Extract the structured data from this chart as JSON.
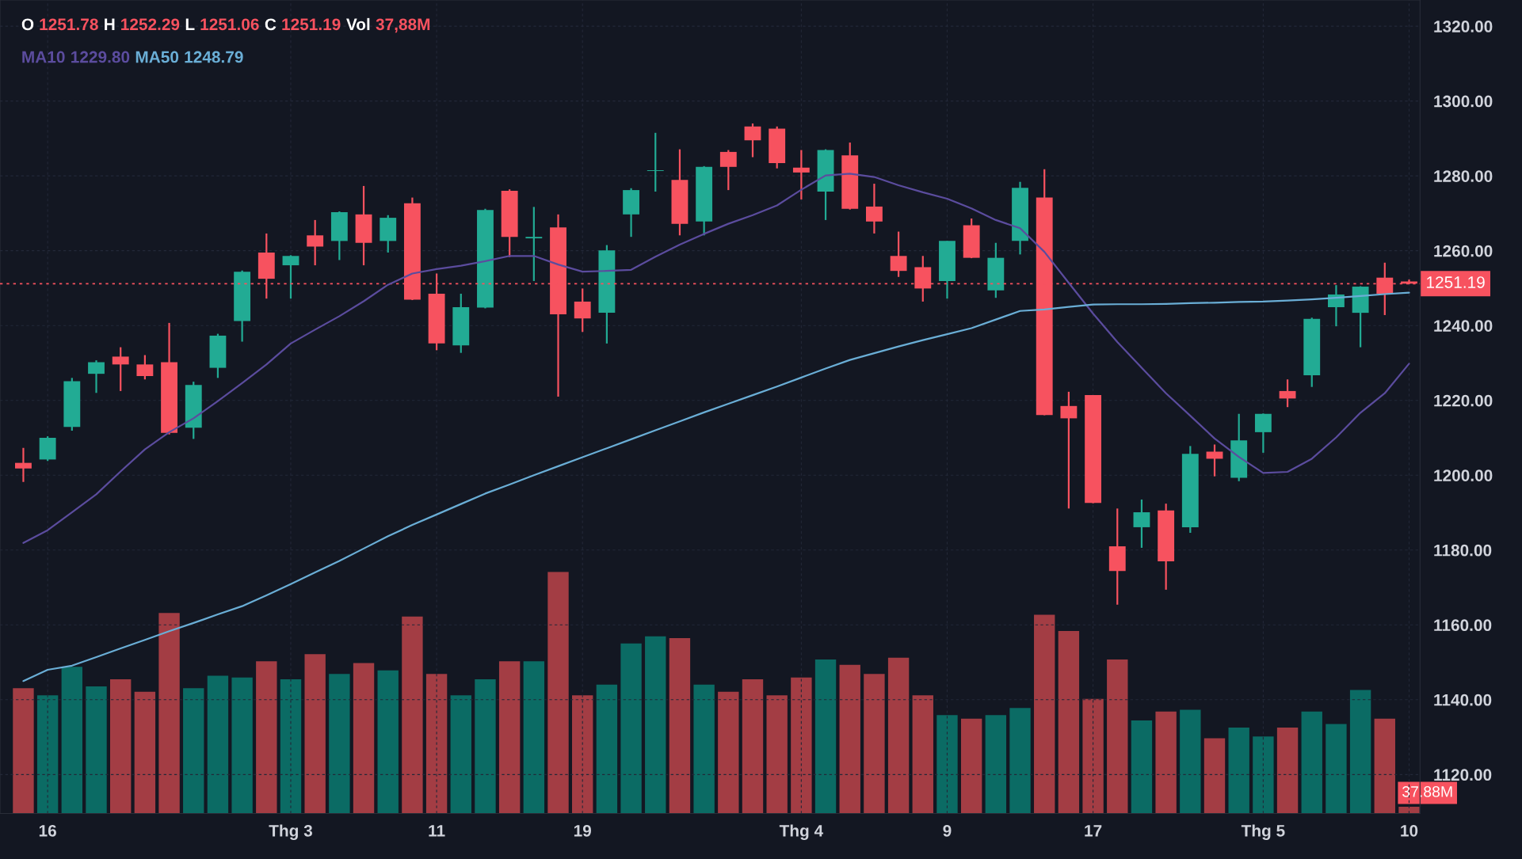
{
  "chart_data": [
    {
      "type": "candlestick",
      "categories": [
        null,
        "16",
        null,
        null,
        null,
        null,
        null,
        null,
        null,
        null,
        null,
        "Thg 3",
        null,
        null,
        null,
        null,
        null,
        "11",
        null,
        null,
        null,
        null,
        null,
        "19",
        null,
        null,
        null,
        null,
        null,
        null,
        null,
        null,
        "Thg 4",
        null,
        null,
        null,
        null,
        null,
        "9",
        null,
        null,
        null,
        null,
        null,
        "17",
        null,
        null,
        null,
        null,
        null,
        null,
        "Thg 5",
        null,
        null,
        null,
        null,
        null,
        "10"
      ],
      "ohlc": [
        [
          1203.3,
          1207.3,
          1198.2,
          1201.8
        ],
        [
          1204.2,
          1210.4,
          1203.8,
          1210.0
        ],
        [
          1212.9,
          1226.0,
          1211.9,
          1225.1
        ],
        [
          1227.1,
          1230.7,
          1222.0,
          1230.2
        ],
        [
          1231.7,
          1234.2,
          1222.5,
          1229.6
        ],
        [
          1229.6,
          1232.1,
          1225.6,
          1226.5
        ],
        [
          1230.2,
          1240.7,
          1210.9,
          1211.3
        ],
        [
          1212.7,
          1225.0,
          1209.7,
          1224.1
        ],
        [
          1228.7,
          1237.8,
          1226.0,
          1237.3
        ],
        [
          1241.2,
          1254.7,
          1235.7,
          1254.4
        ],
        [
          1259.5,
          1264.6,
          1247.2,
          1252.5
        ],
        [
          1256.1,
          1258.8,
          1247.2,
          1258.6
        ],
        [
          1264.1,
          1268.2,
          1256.1,
          1261.1
        ],
        [
          1262.6,
          1270.5,
          1257.5,
          1270.3
        ],
        [
          1269.7,
          1277.3,
          1256.1,
          1262.1
        ],
        [
          1262.6,
          1269.5,
          1259.5,
          1268.8
        ],
        [
          1272.7,
          1274.2,
          1246.8,
          1246.9
        ],
        [
          1248.5,
          1253.9,
          1233.4,
          1235.2
        ],
        [
          1234.7,
          1248.5,
          1232.7,
          1244.9
        ],
        [
          1244.8,
          1271.2,
          1244.6,
          1270.9
        ],
        [
          1276.0,
          1276.4,
          1258.3,
          1263.7
        ],
        [
          1263.3,
          1271.7,
          1251.9,
          1263.7
        ],
        [
          1266.2,
          1269.7,
          1221.0,
          1243.0
        ],
        [
          1246.4,
          1249.9,
          1238.3,
          1241.9
        ],
        [
          1243.4,
          1261.5,
          1235.2,
          1260.1
        ],
        [
          1269.7,
          1276.7,
          1263.7,
          1276.2
        ],
        [
          1281.3,
          1291.5,
          1275.8,
          1281.5
        ],
        [
          1278.9,
          1287.1,
          1264.1,
          1267.2
        ],
        [
          1267.8,
          1282.6,
          1264.1,
          1282.4
        ],
        [
          1286.4,
          1286.9,
          1276.2,
          1282.4
        ],
        [
          1293.2,
          1294.0,
          1285.0,
          1289.5
        ],
        [
          1292.6,
          1293.2,
          1282.0,
          1283.4
        ],
        [
          1282.2,
          1286.9,
          1273.7,
          1280.9
        ],
        [
          1275.8,
          1287.1,
          1268.2,
          1286.9
        ],
        [
          1285.5,
          1288.9,
          1271.0,
          1271.2
        ],
        [
          1271.8,
          1277.9,
          1264.6,
          1267.8
        ],
        [
          1258.6,
          1265.1,
          1253.0,
          1254.6
        ],
        [
          1255.6,
          1258.6,
          1246.4,
          1249.9
        ],
        [
          1251.9,
          1262.6,
          1247.2,
          1262.6
        ],
        [
          1266.8,
          1268.6,
          1258.0,
          1258.1
        ],
        [
          1249.4,
          1262.1,
          1247.4,
          1258.1
        ],
        [
          1262.6,
          1278.4,
          1259.0,
          1276.8
        ],
        [
          1274.2,
          1281.8,
          1216.0,
          1216.1
        ],
        [
          1218.5,
          1222.3,
          1191.1,
          1215.2
        ],
        [
          1221.4,
          1221.4,
          1192.5,
          1192.6
        ],
        [
          1181.0,
          1191.1,
          1165.4,
          1174.4
        ],
        [
          1186.1,
          1193.5,
          1180.6,
          1190.1
        ],
        [
          1190.6,
          1192.4,
          1169.4,
          1177.0
        ],
        [
          1186.1,
          1207.8,
          1184.6,
          1205.7
        ],
        [
          1206.3,
          1208.2,
          1199.7,
          1204.4
        ],
        [
          1199.3,
          1216.4,
          1198.4,
          1209.3
        ],
        [
          1211.5,
          1216.5,
          1206.0,
          1216.4
        ],
        [
          1222.5,
          1225.6,
          1218.2,
          1220.5
        ],
        [
          1226.7,
          1242.1,
          1223.6,
          1241.8
        ],
        [
          1244.9,
          1250.8,
          1239.8,
          1248.3
        ],
        [
          1243.4,
          1250.5,
          1234.2,
          1250.4
        ],
        [
          1252.8,
          1256.8,
          1242.8,
          1248.5
        ],
        [
          1251.78,
          1252.29,
          1251.06,
          1251.19
        ]
      ],
      "colors": [
        "#f7525f",
        "#22ab94",
        "#22ab94",
        "#22ab94",
        "#f7525f",
        "#f7525f",
        "#f7525f",
        "#22ab94",
        "#22ab94",
        "#22ab94",
        "#f7525f",
        "#22ab94",
        "#f7525f",
        "#22ab94",
        "#f7525f",
        "#22ab94",
        "#f7525f",
        "#f7525f",
        "#22ab94",
        "#22ab94",
        "#f7525f",
        "#22ab94",
        "#f7525f",
        "#f7525f",
        "#22ab94",
        "#22ab94",
        "#22ab94",
        "#f7525f",
        "#22ab94",
        "#f7525f",
        "#f7525f",
        "#f7525f",
        "#f7525f",
        "#22ab94",
        "#f7525f",
        "#f7525f",
        "#f7525f",
        "#f7525f",
        "#22ab94",
        "#f7525f",
        "#22ab94",
        "#22ab94",
        "#f7525f",
        "#f7525f",
        "#f7525f",
        "#f7525f",
        "#22ab94",
        "#f7525f",
        "#22ab94",
        "#f7525f",
        "#22ab94",
        "#22ab94",
        "#f7525f",
        "#22ab94",
        "#22ab94",
        "#22ab94",
        "#f7525f",
        "#f7525f"
      ],
      "series": [
        {
          "type": "line",
          "name": "MA10",
          "color": "#5b4c9e",
          "values": [
            1181.9,
            1185.3,
            1190.1,
            1194.9,
            1201.0,
            1206.9,
            1211.5,
            1215.2,
            1219.8,
            1224.6,
            1229.6,
            1235.2,
            1238.9,
            1242.5,
            1246.5,
            1250.9,
            1253.9,
            1255.1,
            1256.0,
            1257.2,
            1258.6,
            1258.6,
            1256.3,
            1254.4,
            1254.6,
            1254.9,
            1258.4,
            1261.6,
            1264.5,
            1267.2,
            1269.5,
            1272.1,
            1276.3,
            1280.1,
            1280.6,
            1279.7,
            1277.5,
            1275.6,
            1273.9,
            1271.3,
            1268.2,
            1266.0,
            1259.7,
            1251.4,
            1243.2,
            1235.6,
            1228.7,
            1221.9,
            1215.9,
            1209.8,
            1204.9,
            1200.6,
            1200.9,
            1204.4,
            1210.1,
            1216.7,
            1221.9,
            1229.8
          ]
        },
        {
          "type": "line",
          "name": "MA50",
          "color": "#6aaed6",
          "values": [
            1145.0,
            1148.0,
            1149.1,
            1151.4,
            1153.7,
            1156.0,
            1158.3,
            1160.5,
            1162.8,
            1165.0,
            1167.9,
            1170.9,
            1174.0,
            1177.1,
            1180.4,
            1183.7,
            1186.7,
            1189.5,
            1192.3,
            1195.1,
            1197.5,
            1200.0,
            1202.4,
            1204.8,
            1207.2,
            1209.6,
            1212.0,
            1214.4,
            1216.8,
            1219.1,
            1221.4,
            1223.7,
            1226.1,
            1228.5,
            1230.8,
            1232.6,
            1234.4,
            1236.1,
            1237.7,
            1239.3,
            1241.6,
            1243.9,
            1244.3,
            1245.0,
            1245.6,
            1245.7,
            1245.7,
            1245.8,
            1246.0,
            1246.1,
            1246.3,
            1246.4,
            1246.7,
            1247.0,
            1247.4,
            1247.9,
            1248.4,
            1248.8
          ]
        }
      ],
      "ylim": [
        1109.6,
        1327
      ],
      "yticks": [
        {
          "value": 1120,
          "label": "1120.00"
        },
        {
          "value": 1140,
          "label": "1140.00"
        },
        {
          "value": 1160,
          "label": "1160.00"
        },
        {
          "value": 1180,
          "label": "1180.00"
        },
        {
          "value": 1200,
          "label": "1200.00"
        },
        {
          "value": 1220,
          "label": "1220.00"
        },
        {
          "value": 1240,
          "label": "1240.00"
        },
        {
          "value": 1260,
          "label": "1260.00"
        },
        {
          "value": 1280,
          "label": "1280.00"
        },
        {
          "value": 1300,
          "label": "1300.00"
        },
        {
          "value": 1320,
          "label": "1320.00"
        }
      ],
      "ref_lines": [
        {
          "axis": "y",
          "value": 1251.19,
          "label": "1251.19",
          "color": "#f7525f",
          "line_style": "dotted"
        }
      ],
      "annotations": [
        "O 1251.78 H 1252.29 L 1251.06 C 1251.19 Vol 37,88M",
        "1229.80",
        "1248.79"
      ],
      "grid": true,
      "legend": "top left"
    },
    {
      "type": "bar",
      "categories": [
        null,
        null,
        null,
        null,
        null,
        null,
        null,
        null,
        null,
        null,
        null,
        null,
        null,
        null,
        null,
        null,
        null,
        null,
        null,
        null,
        null,
        null,
        null,
        null,
        null,
        null,
        null,
        null,
        null,
        null,
        null,
        null,
        null,
        null,
        null,
        null,
        null,
        null,
        null,
        null,
        null,
        null,
        null,
        null,
        null,
        null,
        null,
        null,
        null,
        null,
        null,
        null,
        null,
        null,
        null,
        null,
        null,
        null
      ],
      "values": [
        700,
        660,
        820,
        710,
        750,
        680,
        1120,
        700,
        770,
        760,
        850,
        750,
        890,
        780,
        840,
        800,
        1100,
        780,
        660,
        750,
        850,
        850,
        1350,
        660,
        720,
        950,
        990,
        980,
        720,
        680,
        750,
        660,
        760,
        860,
        830,
        780,
        870,
        660,
        550,
        530,
        550,
        590,
        1110,
        1020,
        640,
        860,
        520,
        570,
        580,
        420,
        480,
        430,
        480,
        570,
        500,
        690,
        530,
        37.88
      ],
      "value_labels": [
        null,
        null,
        null,
        null,
        null,
        null,
        null,
        null,
        null,
        null,
        null,
        null,
        null,
        null,
        null,
        null,
        null,
        null,
        null,
        null,
        null,
        null,
        null,
        null,
        null,
        null,
        null,
        null,
        null,
        null,
        null,
        null,
        null,
        null,
        null,
        null,
        null,
        null,
        null,
        null,
        null,
        null,
        null,
        null,
        null,
        null,
        null,
        null,
        null,
        null,
        null,
        null,
        null,
        null,
        null,
        null,
        null,
        "37.88M"
      ],
      "colors": [
        "#a33d44",
        "#0b6b64",
        "#0b6b64",
        "#0b6b64",
        "#a33d44",
        "#a33d44",
        "#a33d44",
        "#0b6b64",
        "#0b6b64",
        "#0b6b64",
        "#a33d44",
        "#0b6b64",
        "#a33d44",
        "#0b6b64",
        "#a33d44",
        "#0b6b64",
        "#a33d44",
        "#a33d44",
        "#0b6b64",
        "#0b6b64",
        "#a33d44",
        "#0b6b64",
        "#a33d44",
        "#a33d44",
        "#0b6b64",
        "#0b6b64",
        "#0b6b64",
        "#a33d44",
        "#0b6b64",
        "#a33d44",
        "#a33d44",
        "#a33d44",
        "#a33d44",
        "#0b6b64",
        "#a33d44",
        "#a33d44",
        "#a33d44",
        "#a33d44",
        "#0b6b64",
        "#a33d44",
        "#0b6b64",
        "#0b6b64",
        "#a33d44",
        "#a33d44",
        "#a33d44",
        "#a33d44",
        "#0b6b64",
        "#a33d44",
        "#0b6b64",
        "#a33d44",
        "#0b6b64",
        "#0b6b64",
        "#a33d44",
        "#0b6b64",
        "#0b6b64",
        "#0b6b64",
        "#a33d44",
        "#a33d44"
      ]
    }
  ]
}
